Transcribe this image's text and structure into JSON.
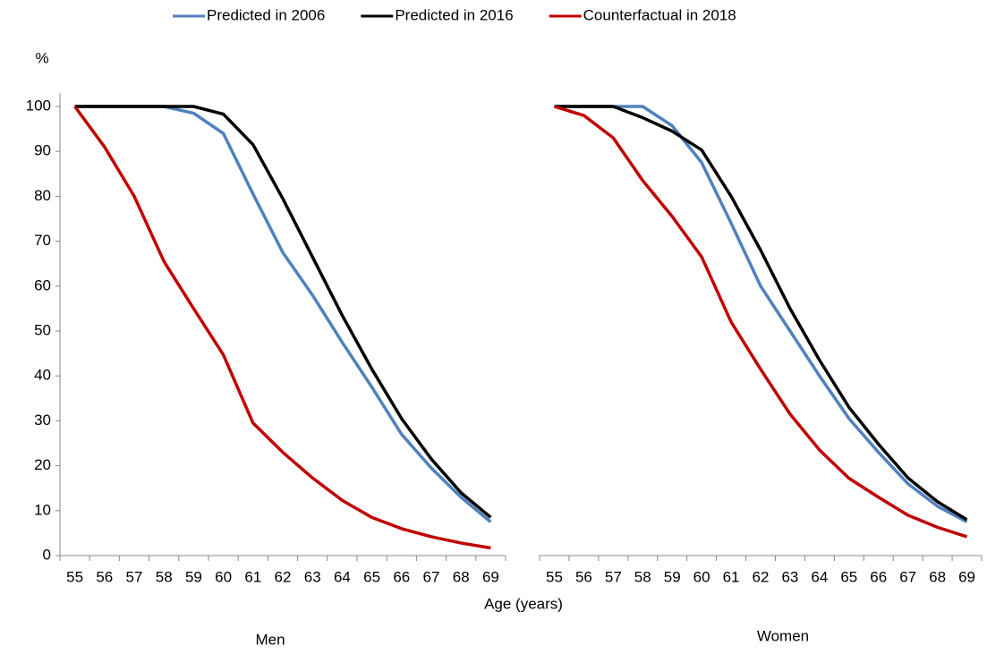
{
  "chart_data": {
    "type": "line",
    "y_label": "%",
    "x_label": "Age (years)",
    "categories": [
      "55",
      "56",
      "57",
      "58",
      "59",
      "60",
      "61",
      "62",
      "63",
      "64",
      "65",
      "66",
      "67",
      "68",
      "69"
    ],
    "ylim": [
      0,
      100
    ],
    "yticks": [
      0,
      10,
      20,
      30,
      40,
      50,
      60,
      70,
      80,
      90,
      100
    ],
    "series": [
      {
        "name": "Predicted in 2006",
        "color": "#4f81bd"
      },
      {
        "name": "Predicted in 2016",
        "color": "#000000"
      },
      {
        "name": "Counterfactual in 2018",
        "color": "#c00000"
      }
    ],
    "panels": [
      {
        "title": "Men",
        "values": [
          [
            100,
            100,
            100,
            100,
            98.5,
            94,
            80.5,
            67.5,
            58,
            47.5,
            37.5,
            27,
            19.5,
            13,
            7.5
          ],
          [
            100,
            100,
            100,
            100,
            100,
            98.3,
            91.5,
            79.5,
            66.5,
            53.5,
            41.5,
            30.5,
            21.5,
            14,
            8.5
          ],
          [
            100,
            91,
            80,
            65.5,
            55,
            44.7,
            29.5,
            23,
            17.3,
            12.3,
            8.5,
            6,
            4.2,
            2.8,
            1.7
          ]
        ]
      },
      {
        "title": "Women",
        "values": [
          [
            100,
            100,
            100,
            100,
            95.7,
            87.5,
            74,
            60,
            50,
            40,
            30.5,
            23,
            16,
            11,
            7.5
          ],
          [
            100,
            100,
            100,
            97.5,
            94.5,
            90.3,
            80,
            68,
            55,
            43.5,
            33,
            24.8,
            17.3,
            12,
            8
          ],
          [
            100,
            98,
            93,
            83.5,
            75.5,
            66.5,
            52,
            41.5,
            31.5,
            23.5,
            17.2,
            13,
            9,
            6.3,
            4.2
          ]
        ]
      }
    ]
  }
}
